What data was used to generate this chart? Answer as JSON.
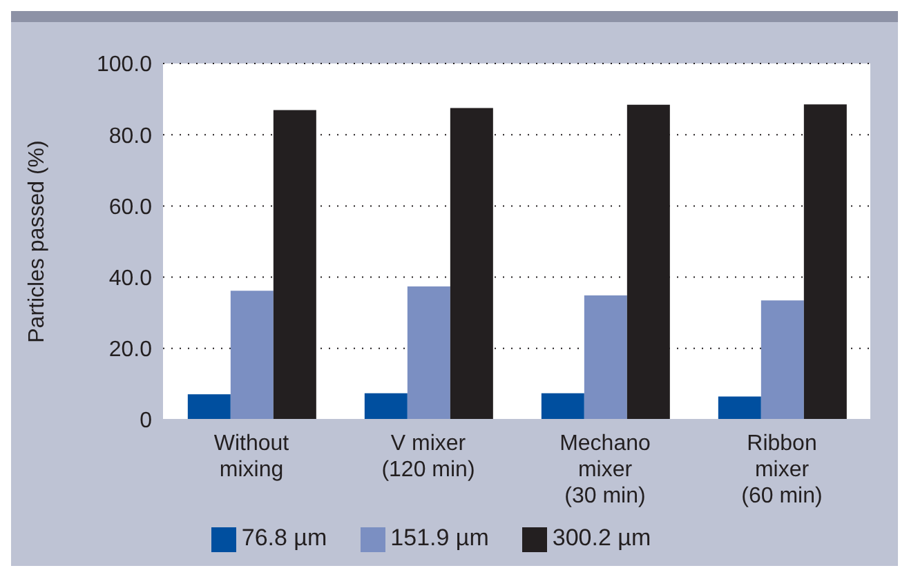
{
  "chart_data": {
    "type": "bar",
    "ylabel": "Particles passed (%)",
    "categories": [
      "Without\nmixing",
      "V mixer\n(120 min)",
      "Mechano\nmixer\n(30 min)",
      "Ribbon\nmixer\n(60 min)"
    ],
    "series": [
      {
        "name": "76.8 µm",
        "color": "#004f9f",
        "values": [
          7.1,
          7.4,
          7.4,
          6.5
        ]
      },
      {
        "name": "151.9 µm",
        "color": "#7b8fc2",
        "values": [
          36.2,
          37.4,
          34.9,
          33.5
        ]
      },
      {
        "name": "300.2 µm",
        "color": "#231f20",
        "values": [
          86.9,
          87.5,
          88.4,
          88.5
        ]
      }
    ],
    "ylim": [
      0,
      100
    ],
    "yticks": [
      0,
      {
        "value": 20,
        "label": "20.0"
      },
      {
        "value": 40,
        "label": "40.0"
      },
      {
        "value": 60,
        "label": "60.0"
      },
      {
        "value": 80,
        "label": "80.0"
      },
      {
        "value": 100,
        "label": "100.0"
      }
    ],
    "grid": "y",
    "legend": "bottom"
  }
}
